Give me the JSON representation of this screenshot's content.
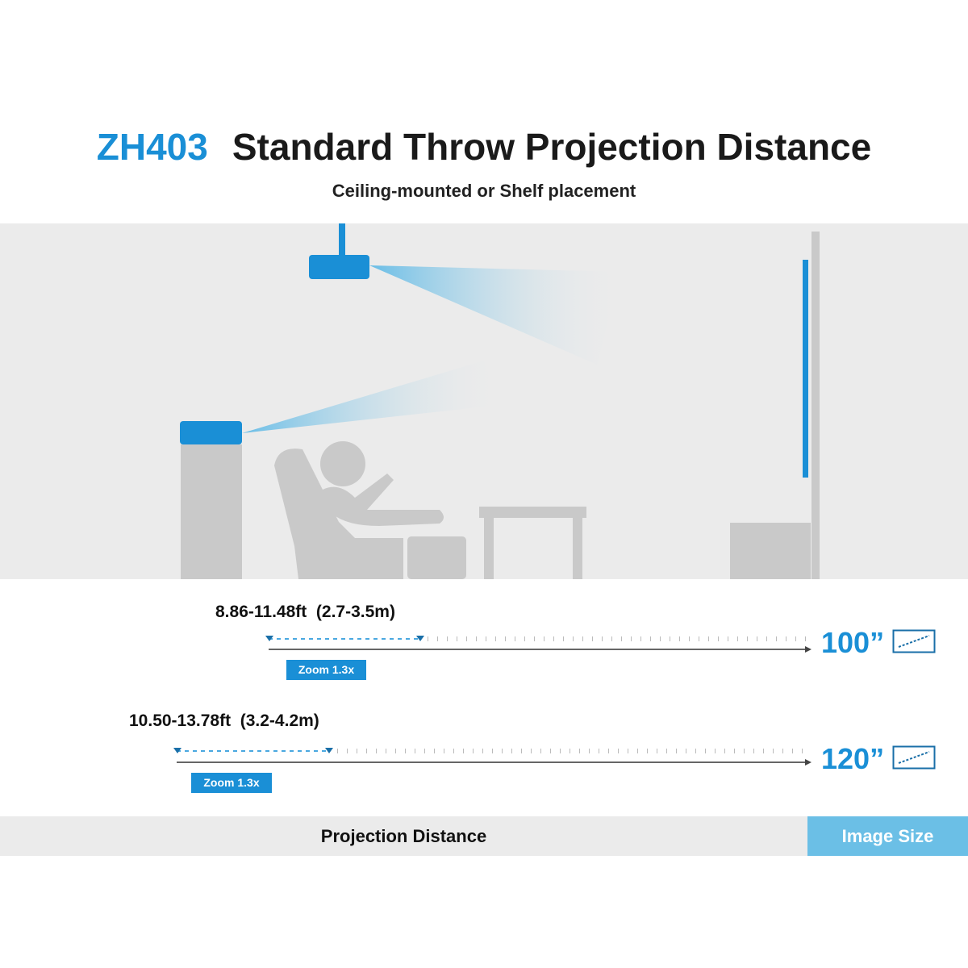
{
  "header": {
    "model": "ZH403",
    "title": "Standard Throw Projection Distance",
    "subtitle": "Ceiling-mounted or Shelf placement"
  },
  "rows": [
    {
      "distance": "8.86-11.48ft  (2.7-3.5m)",
      "zoom": "Zoom 1.3x",
      "size": "100”"
    },
    {
      "distance": "10.50-13.78ft  (3.2-4.2m)",
      "zoom": "Zoom 1.3x",
      "size": "120”"
    }
  ],
  "footer": {
    "left": "Projection Distance",
    "right": "Image Size"
  },
  "colors": {
    "accent": "#1a8fd6",
    "room": "#ebebeb",
    "furniture": "#c9c9c9",
    "footer_accent": "#6bbfe6"
  }
}
